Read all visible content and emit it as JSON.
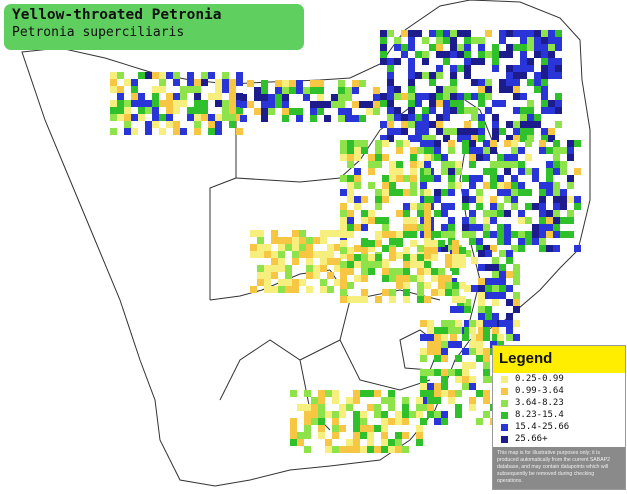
{
  "title": {
    "common_name": "Yellow-throated Petronia",
    "scientific_name": "Petronia superciliaris"
  },
  "legend": {
    "heading": "Legend",
    "items": [
      {
        "label": "0.25-0.99",
        "color": "#f6ef7e"
      },
      {
        "label": "0.99-3.64",
        "color": "#f7c744"
      },
      {
        "label": "3.64-8.23",
        "color": "#8ee34a"
      },
      {
        "label": "8.23-15.4",
        "color": "#2fc02c"
      },
      {
        "label": "15.4-25.66",
        "color": "#2a35d8"
      },
      {
        "label": "25.66+",
        "color": "#1c1c8c"
      }
    ],
    "disclaimer": "This map is for illustrative purposes only; it is produced automatically from the current SABAP2 database, and may contain datapoints which will subsequently be removed during checking operations."
  },
  "map": {
    "land_color": "#ffffff",
    "border_color": "#333333",
    "grid_color": "#c8c8c8"
  }
}
